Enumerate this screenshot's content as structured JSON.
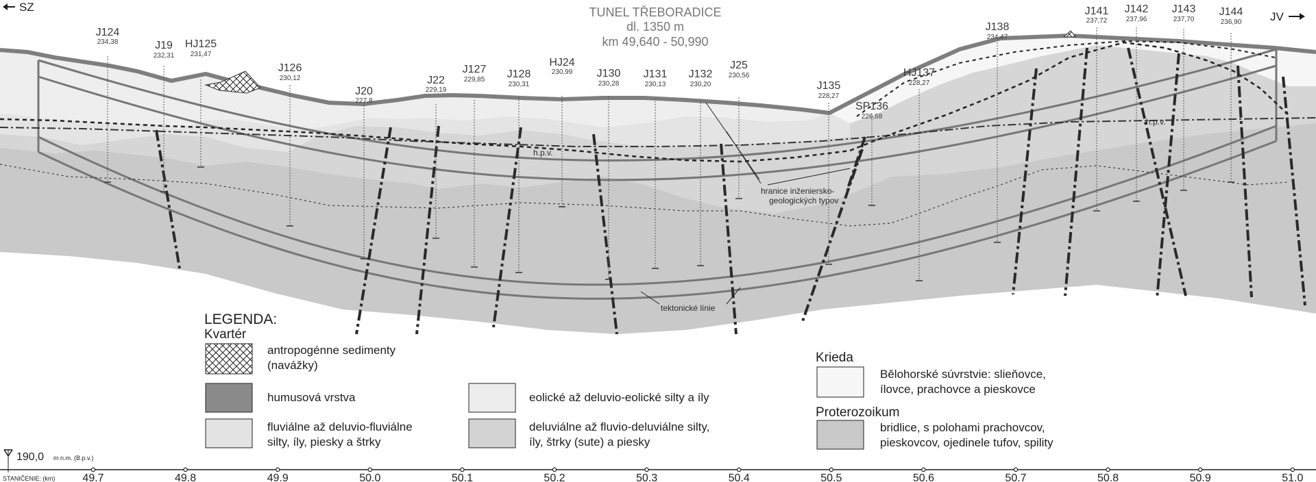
{
  "title": {
    "line1": "TUNEL TŘEBORADICE",
    "line2": "dl. 1350 m",
    "line3": "km 49,640 - 50,990"
  },
  "directions": {
    "left": "SZ",
    "right": "JV"
  },
  "boreholes": [
    {
      "name": "J124",
      "elev": "234,38"
    },
    {
      "name": "J19",
      "elev": "232,31"
    },
    {
      "name": "HJ125",
      "elev": "231,47"
    },
    {
      "name": "J126",
      "elev": "230,12"
    },
    {
      "name": "J20",
      "elev": "227,8"
    },
    {
      "name": "J22",
      "elev": "229,19"
    },
    {
      "name": "J127",
      "elev": "229,85"
    },
    {
      "name": "J128",
      "elev": "230,31"
    },
    {
      "name": "HJ24",
      "elev": "230,99"
    },
    {
      "name": "J130",
      "elev": "230,28"
    },
    {
      "name": "J131",
      "elev": "230,13"
    },
    {
      "name": "J132",
      "elev": "230,20"
    },
    {
      "name": "J25",
      "elev": "230,56"
    },
    {
      "name": "J135",
      "elev": "228,27"
    },
    {
      "name": "SP136",
      "elev": "226,68"
    },
    {
      "name": "HJ137",
      "elev": "228,27"
    },
    {
      "name": "J138",
      "elev": "234,47"
    },
    {
      "name": "J141",
      "elev": "237,72"
    },
    {
      "name": "J142",
      "elev": "237,96"
    },
    {
      "name": "J143",
      "elev": "237,70"
    },
    {
      "name": "J144",
      "elev": "236,90"
    }
  ],
  "annotations": {
    "hpv_left": "h.p.v.",
    "hpv_right": "h.p.v.",
    "boundary_line1": "hranice inženiersko-",
    "boundary_line2": "geologických typov",
    "tectonic": "tektonické línie"
  },
  "legend": {
    "title": "LEGENDA:",
    "quaternary": "Kvartér",
    "cretaceous": "Krieda",
    "proterozoic": "Proterozoikum",
    "items": {
      "anthropogenic_1": "antropogénne sedimenty",
      "anthropogenic_2": "(navážky)",
      "humus": "humusová vrstva",
      "eolian": "eolické až deluvio-eolické silty a íly",
      "fluvial_1": "fluviálne až deluvio-fluviálne",
      "fluvial_2": "silty, íly, piesky a štrky",
      "deluvial_1": "deluviálne až fluvio-deluviálne silty,",
      "deluvial_2": "íly, štrky (sute) a piesky",
      "bilohorske_1": "Bělohorské súvrstvie: slieňovce,",
      "bilohorske_2": "ílovce, prachovce a pieskovce",
      "shale_1": "bridlice, s polohami prachovcov,",
      "shale_2": "pieskovcov, ojedinele tufov, spility"
    }
  },
  "datum": {
    "value": "190,0",
    "unit": "m n.m. (B.p.v.)"
  },
  "chainage": {
    "label": "STANIČENIE: (km)",
    "ticks": [
      "49.7",
      "49.8",
      "49.9",
      "50.0",
      "50.1",
      "50.2",
      "50.3",
      "50.4",
      "50.5",
      "50.6",
      "50.7",
      "50.8",
      "50.9",
      "51.0"
    ]
  },
  "colors": {
    "bedrock": "#c9c9c9",
    "deluvial": "#d3d3d3",
    "fluvial": "#e3e3e3",
    "eolian": "#ededed",
    "cretaceous": "#f7f7f7",
    "humus": "#8a8a8a",
    "tunnel": "#777777"
  }
}
